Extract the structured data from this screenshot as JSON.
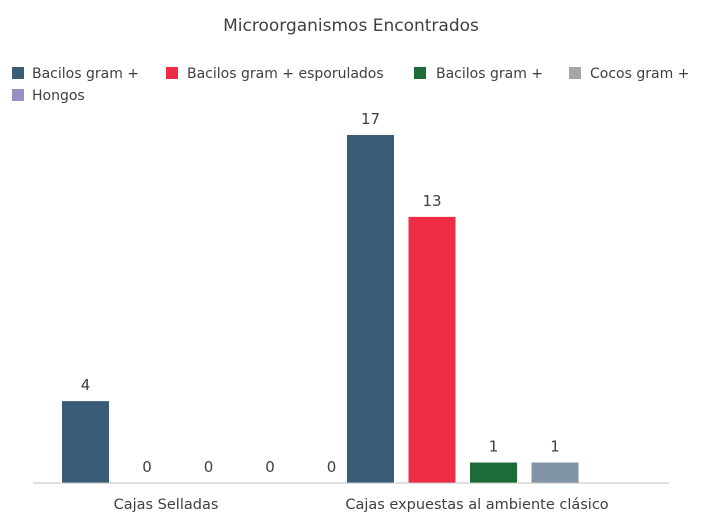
{
  "chart_data": {
    "type": "bar",
    "title": "Microorganismos Encontrados",
    "categories": [
      "Cajas Selladas",
      "Cajas expuestas al ambiente clásico"
    ],
    "series": [
      {
        "name": "Bacilos gram +",
        "color": "#3a5d77",
        "values": [
          4,
          17
        ]
      },
      {
        "name": "Bacilos gram + esporulados",
        "color": "#ee2c44",
        "values": [
          0,
          13
        ]
      },
      {
        "name": "Bacilos gram +",
        "color": "#1e6b3a",
        "values": [
          0,
          1
        ]
      },
      {
        "name": "Cocos gram +",
        "color": "#8194a6",
        "values": [
          0,
          1
        ]
      },
      {
        "name": "Hongos",
        "color": "#9a8fc4",
        "values": [
          0,
          null
        ]
      }
    ],
    "legend_colors": [
      "#3a5d77",
      "#ee2c44",
      "#1e6b3a",
      "#a6a6a6",
      "#9a8fc4"
    ],
    "legend_position": "top",
    "ylim": [
      0,
      17
    ],
    "grid": false,
    "xlabel": "",
    "ylabel": ""
  }
}
